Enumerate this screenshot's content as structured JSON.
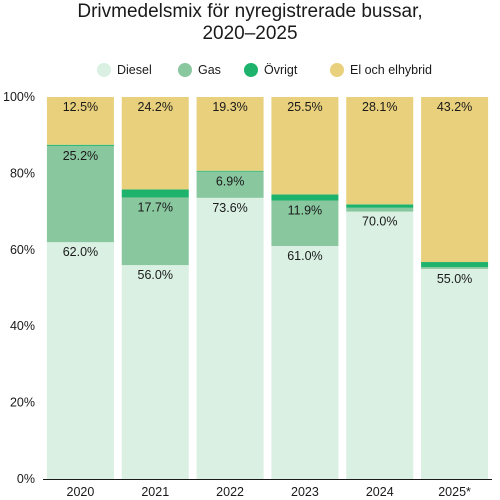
{
  "chart_data": {
    "type": "bar",
    "stacked": true,
    "title_lines": [
      "Drivmedelsmix för nyregistrerade bussar,",
      "2020–2025"
    ],
    "categories": [
      "2020",
      "2021",
      "2022",
      "2023",
      "2024",
      "2025*"
    ],
    "ylim": [
      0,
      100
    ],
    "yticks": [
      "0%",
      "20%",
      "40%",
      "60%",
      "80%",
      "100%"
    ],
    "legend_position": "top",
    "series": [
      {
        "name": "Diesel",
        "color": "#d9f0e3",
        "values": [
          62.0,
          56.0,
          73.6,
          61.0,
          70.0,
          55.0
        ],
        "labels": [
          "62.0%",
          "56.0%",
          "73.6%",
          "61.0%",
          "70.0%",
          "55.0%"
        ]
      },
      {
        "name": "Gas",
        "color": "#89c79f",
        "values": [
          25.2,
          17.7,
          6.9,
          11.9,
          1.0,
          0.5
        ],
        "labels": [
          "25.2%",
          "17.7%",
          "6.9%",
          "11.9%",
          "",
          ""
        ]
      },
      {
        "name": "Övrigt",
        "color": "#1eb36d",
        "values": [
          0.3,
          2.1,
          0.2,
          1.6,
          0.9,
          1.3
        ],
        "labels": [
          "",
          "",
          "",
          "",
          "",
          ""
        ]
      },
      {
        "name": "El och elhybrid",
        "color": "#e9d07c",
        "values": [
          12.5,
          24.2,
          19.3,
          25.5,
          28.1,
          43.2
        ],
        "labels": [
          "12.5%",
          "24.2%",
          "19.3%",
          "25.5%",
          "28.1%",
          "43.2%"
        ]
      }
    ]
  }
}
